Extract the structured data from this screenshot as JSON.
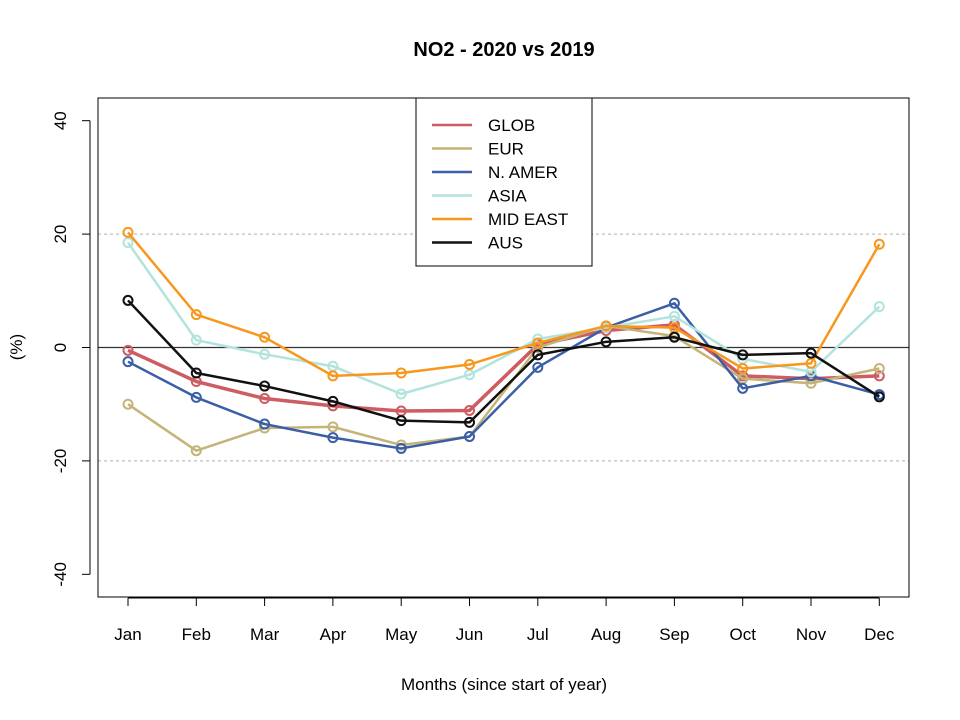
{
  "chart_data": {
    "type": "line",
    "title": "NO2 - 2020 vs 2019",
    "xlabel": "Months (since start of year)",
    "ylabel": "(%)",
    "categories": [
      "Jan",
      "Feb",
      "Mar",
      "Apr",
      "May",
      "Jun",
      "Jul",
      "Aug",
      "Sep",
      "Oct",
      "Nov",
      "Dec"
    ],
    "ylim": [
      -44,
      44
    ],
    "yticks": [
      -40,
      -20,
      0,
      20,
      40
    ],
    "grid_dashed_at": [
      -20,
      20
    ],
    "zero_line": true,
    "legend_position": "top-center",
    "series": [
      {
        "name": "GLOB",
        "color": "#cd5c63",
        "values": [
          -0.5,
          -6.0,
          -9.0,
          -10.3,
          -11.2,
          -11.1,
          0.5,
          3.0,
          4.0,
          -5.0,
          -5.5,
          -5.0
        ]
      },
      {
        "name": "EUR",
        "color": "#c4b478",
        "values": [
          -10.0,
          -18.2,
          -14.2,
          -14.0,
          -17.2,
          -15.7,
          0.0,
          3.8,
          2.0,
          -5.5,
          -6.3,
          -3.7
        ]
      },
      {
        "name": "N. AMER",
        "color": "#3a5fa6",
        "values": [
          -2.5,
          -8.8,
          -13.5,
          -15.9,
          -17.8,
          -15.7,
          -3.5,
          3.5,
          7.8,
          -7.2,
          -5.0,
          -8.3
        ]
      },
      {
        "name": "ASIA",
        "color": "#b2e4de",
        "values": [
          18.5,
          1.3,
          -1.2,
          -3.3,
          -8.2,
          -4.8,
          1.5,
          3.5,
          5.5,
          -2.0,
          -4.3,
          7.2
        ]
      },
      {
        "name": "MID EAST",
        "color": "#f7981d",
        "values": [
          20.3,
          5.8,
          1.8,
          -5.0,
          -4.5,
          -3.0,
          0.8,
          3.8,
          3.5,
          -3.7,
          -2.8,
          18.2
        ]
      },
      {
        "name": "AUS",
        "color": "#111111",
        "values": [
          8.3,
          -4.5,
          -6.8,
          -9.5,
          -12.9,
          -13.2,
          -1.3,
          1.0,
          1.8,
          -1.3,
          -1.0,
          -8.7
        ]
      }
    ]
  }
}
